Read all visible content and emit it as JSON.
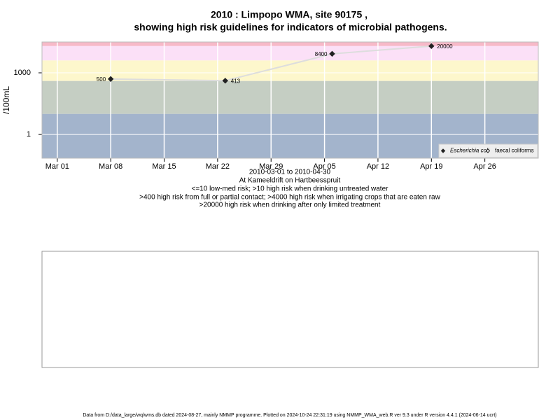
{
  "chart_data": {
    "type": "line",
    "title": "2010 : Limpopo WMA, site 90175 ,",
    "subtitle": "showing high risk guidelines for indicators of microbial pathogens.",
    "y_label": "/100mL",
    "x_label": "2010-03-01 to 2010-04-30",
    "site": "At Kameeldrift on Hartbeesspruit",
    "notes": [
      "<=10 low-med risk; >10 high risk when drinking untreated water",
      ">400 high risk from full or partial contact; >4000 high risk when irrigating crops that are eaten raw",
      ">20000 high risk when drinking after only limited treatment"
    ],
    "x": [
      "2010-03-08",
      "2010-03-23",
      "2010-04-06",
      "2010-04-19"
    ],
    "series": [
      {
        "name": "Escherichia coli",
        "color": "#222222",
        "line_color": "#dddddd",
        "values": [
          500,
          413,
          8400,
          20000
        ]
      },
      {
        "name": "faecal coliforms",
        "color": "#222222",
        "values": [
          null,
          null,
          null,
          null
        ]
      }
    ],
    "guideline_limits": [
      10,
      400,
      4000,
      20000
    ],
    "band_colors": [
      "#a3b4cc",
      "#c5cec3",
      "#fdf7cc",
      "#fbe0f7",
      "#f7b9c8"
    ],
    "log_y": true,
    "ylim": [
      0.07,
      31600
    ],
    "yticks": [
      1,
      1000
    ],
    "xlim": [
      "2010-02-27",
      "2010-05-03"
    ],
    "xticks": [
      {
        "value": "2010-03-01",
        "label": "Mar 01"
      },
      {
        "value": "2010-03-08",
        "label": "Mar 08"
      },
      {
        "value": "2010-03-15",
        "label": "Mar 15"
      },
      {
        "value": "2010-03-22",
        "label": "Mar 22"
      },
      {
        "value": "2010-03-29",
        "label": "Mar 29"
      },
      {
        "value": "2010-04-05",
        "label": "Apr 05"
      },
      {
        "value": "2010-04-12",
        "label": "Apr 12"
      },
      {
        "value": "2010-04-19",
        "label": "Apr 19"
      },
      {
        "value": "2010-04-26",
        "label": "Apr 26"
      }
    ],
    "grid": true,
    "legend_position": "bottom-right",
    "footer": "Data from D:/data_large/wq/wms.db dated 2024-08-27, mainly NMMP programme. Plotted on 2024-10-24 22:31:19 using NMMP_WMA_web.R ver 9.3 under R version 4.4.1 (2024-06-14 ucrt)"
  }
}
